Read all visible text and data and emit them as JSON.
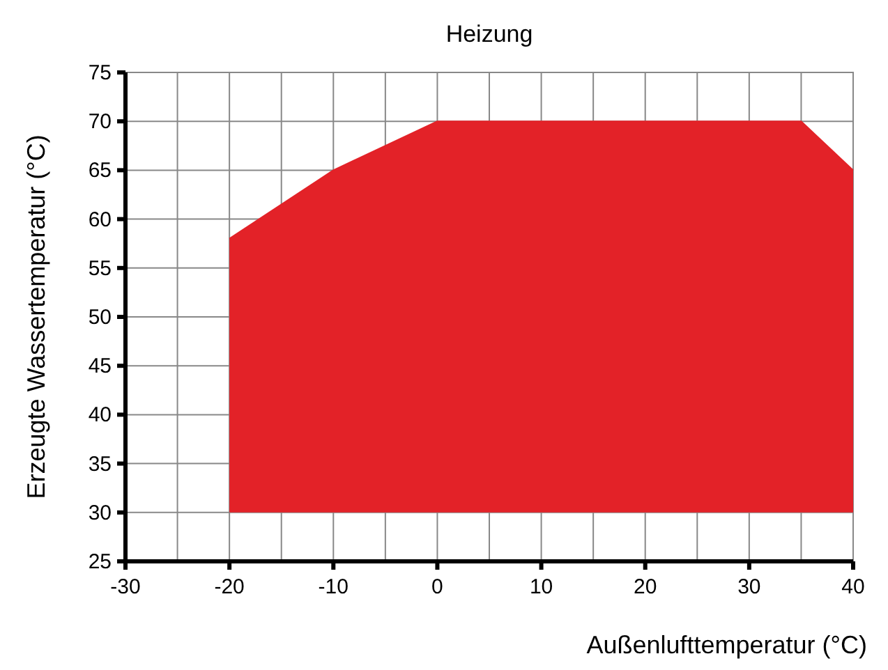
{
  "chart_data": {
    "type": "line",
    "title": "Heizung",
    "xlabel": "Außenlufttemperatur (°C)",
    "ylabel": "Erzeugte Wassertemperatur (°C)",
    "xlim": [
      -30,
      40
    ],
    "ylim": [
      25,
      75
    ],
    "xticks": [
      -30,
      {
        "value": -25,
        "label": null
      },
      -20,
      {
        "value": -15,
        "label": null
      },
      -10,
      {
        "value": -5,
        "label": null
      },
      0,
      {
        "value": 5,
        "label": null
      },
      10,
      {
        "value": 15,
        "label": null
      },
      20,
      {
        "value": 25,
        "label": null
      },
      30,
      {
        "value": 35,
        "label": null
      },
      40
    ],
    "yticks": [
      25,
      30,
      35,
      40,
      45,
      50,
      55,
      60,
      65,
      70,
      75
    ],
    "grid": true,
    "series": [
      {
        "color": "#e32228",
        "x": [
          -20,
          -10,
          0,
          35,
          40
        ],
        "values": [
          58,
          65,
          70,
          70,
          65
        ],
        "lower": [
          30,
          30,
          30,
          30,
          30
        ],
        "upper": [
          58,
          65,
          70,
          70,
          65
        ]
      }
    ]
  }
}
